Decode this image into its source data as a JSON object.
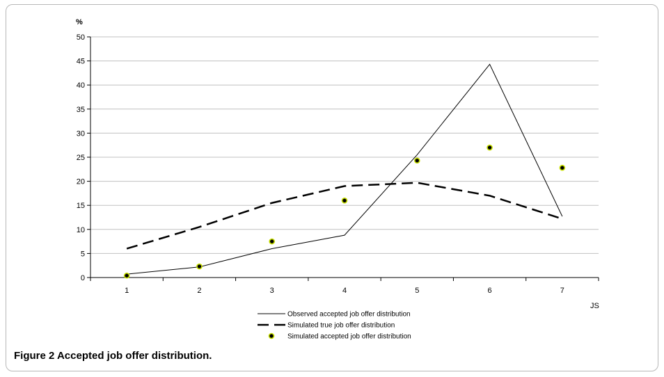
{
  "caption": "Figure 2 Accepted job offer distribution.",
  "chart_data": {
    "type": "line",
    "title": "",
    "xlabel": "JS",
    "ylabel": "%",
    "categories": [
      "1",
      "2",
      "3",
      "4",
      "5",
      "6",
      "7"
    ],
    "ylim": [
      0,
      50
    ],
    "yticks": [
      0,
      5,
      10,
      15,
      20,
      25,
      30,
      35,
      40,
      45,
      50
    ],
    "grid": true,
    "legend_position": "bottom-center",
    "series": [
      {
        "name": "Observed accepted job offer distribution",
        "style": "line",
        "color": "#000000",
        "values": [
          0.7,
          2.2,
          6.0,
          8.8,
          25.5,
          44.3,
          12.7
        ]
      },
      {
        "name": "Simulated true job offer distribution",
        "style": "dashed",
        "color": "#000000",
        "values": [
          6.0,
          10.5,
          15.5,
          19.0,
          19.7,
          17.0,
          12.2
        ]
      },
      {
        "name": "Simulated accepted job offer distribution",
        "style": "markers",
        "color": "#000000",
        "marker_edge": "#c8e000",
        "values": [
          0.4,
          2.3,
          7.5,
          16.0,
          24.3,
          27.0,
          22.8
        ]
      }
    ]
  }
}
